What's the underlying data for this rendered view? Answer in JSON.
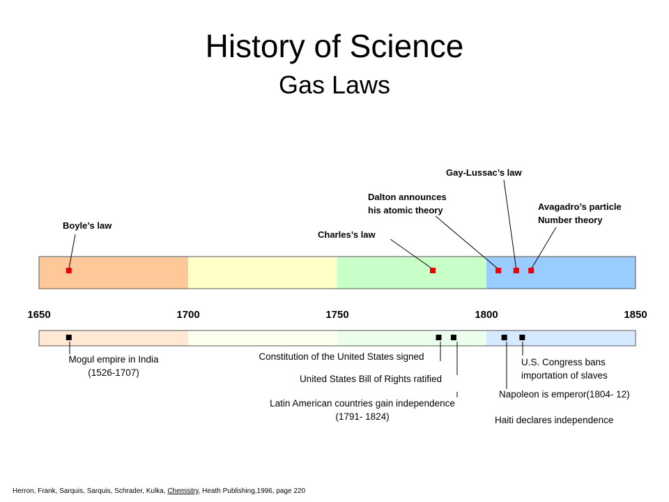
{
  "chart_data": {
    "type": "timeline",
    "title": "History of Science",
    "subtitle": "Gas Laws",
    "xlim": [
      1650,
      1850
    ],
    "xticks": [
      1650,
      1700,
      1750,
      1800,
      1850
    ],
    "band_colors": [
      "#ffc898",
      "#ffffc8",
      "#c8ffc8",
      "#99ccff"
    ],
    "lower_band_colors": [
      "#ffe8d4",
      "#fffff0",
      "#ecffec",
      "#d6eaff"
    ],
    "science_color": "#ee0000",
    "history_color": "#000000",
    "science_events": [
      {
        "label": [
          "Boyle’s law"
        ],
        "year": 1660
      },
      {
        "label": [
          "Charles’s law"
        ],
        "year": 1782
      },
      {
        "label": [
          "Dalton announces",
          "his atomic  theory"
        ],
        "year": 1804
      },
      {
        "label": [
          "Gay-Lussac’s law"
        ],
        "year": 1810
      },
      {
        "label": [
          "Avagadro’s particle",
          "Number theory"
        ],
        "year": 1815
      }
    ],
    "history_markers": [
      1660,
      1784,
      1789,
      1806,
      1812
    ],
    "history_events": [
      [
        "Mogul empire in India",
        "(1526-1707)"
      ],
      [
        "Constitution of the United States signed"
      ],
      [
        "United States Bill of Rights ratified"
      ],
      [
        "Latin American countries gain independence",
        "(1791- 1824)"
      ],
      [
        "U.S. Congress bans",
        "importation of slaves"
      ],
      [
        "Napoleon is emperor(1804- 12)"
      ],
      [
        "Haiti declares independence"
      ]
    ]
  },
  "footer": {
    "parts": [
      "Herron, Frank, Sarquis, Sarquis, Schrader, Kulka, ",
      "Chemistry",
      ", Heath Publishing,1996, page 220"
    ]
  }
}
